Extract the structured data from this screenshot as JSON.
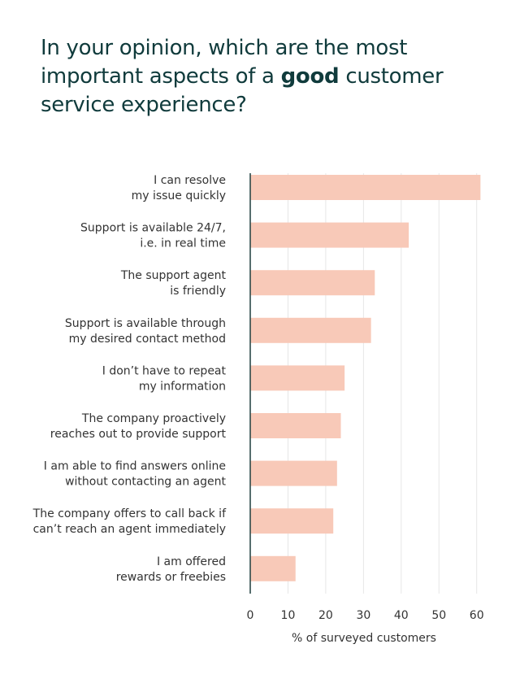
{
  "chart_data": {
    "type": "barh",
    "title_lines": [
      [
        {
          "text": "In your opinion, which are the most"
        }
      ],
      [
        {
          "text": "important aspects of a "
        },
        {
          "text": "good",
          "bold": true
        },
        {
          "text": " customer"
        }
      ],
      [
        {
          "text": "service experience?"
        }
      ]
    ],
    "categories": [
      [
        "I can resolve",
        "my issue quickly"
      ],
      [
        "Support is available 24/7,",
        "i.e. in real time"
      ],
      [
        "The support agent",
        "is friendly"
      ],
      [
        "Support is available through",
        "my desired contact method"
      ],
      [
        "I don’t have to repeat",
        "my information"
      ],
      [
        "The company proactively",
        "reaches out to provide support"
      ],
      [
        "I am able to find answers online",
        "without contacting an agent"
      ],
      [
        "The company offers to call back if",
        "can’t reach an agent immediately"
      ],
      [
        "I am offered",
        "rewards or freebies"
      ]
    ],
    "values": [
      61,
      42,
      33,
      32,
      25,
      24,
      23,
      22,
      12
    ],
    "color": "#f8c9b8",
    "xlim": [
      0,
      62
    ],
    "xticks": [
      0,
      10,
      20,
      30,
      40,
      50,
      60
    ],
    "xlabel": "% of surveyed customers",
    "grid": true
  }
}
